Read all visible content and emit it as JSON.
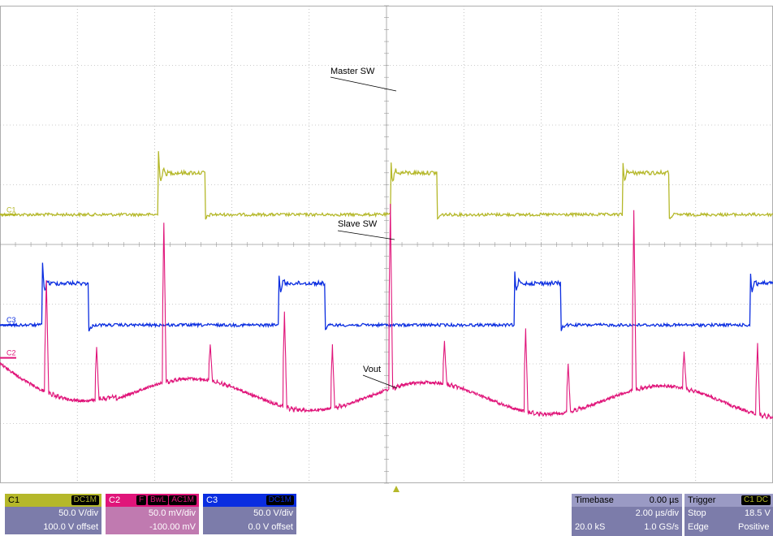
{
  "chart_data": {
    "type": "line",
    "title": "",
    "xlabel": "",
    "ylabel": "",
    "grid": true,
    "x_divisions": 10,
    "y_divisions": 8,
    "series": [
      {
        "name": "C1",
        "color": "#b5b82a",
        "low_div": 3.5,
        "high_div": 2.8,
        "transitions_div": [
          2.05,
          2.65,
          5.05,
          5.65,
          8.05,
          8.65
        ]
      },
      {
        "name": "C3",
        "color": "#0a2de0",
        "low_div": 5.35,
        "high_div": 4.65,
        "transitions_div": [
          0.55,
          1.15,
          3.6,
          4.2,
          6.65,
          7.25,
          9.7
        ]
      },
      {
        "name": "C2",
        "color": "#e0157a"
      }
    ],
    "annotations": [
      {
        "text": "Master SW",
        "target": "C1"
      },
      {
        "text": "Slave SW",
        "target": "C3"
      },
      {
        "text": "Vout",
        "target": "C2"
      }
    ],
    "channel_markers": [
      "C1",
      "C3",
      "C2"
    ]
  },
  "panels": {
    "c1": {
      "name": "C1",
      "coupling": "DC1M",
      "vdiv": "50.0 V/div",
      "offset": "100.0 V offset"
    },
    "c2": {
      "name": "C2",
      "flags": [
        "F",
        "BwL",
        "AC1M"
      ],
      "vdiv": "50.0 mV/div",
      "offset": "-100.00 mV"
    },
    "c3": {
      "name": "C3",
      "coupling": "DC1M",
      "vdiv": "50.0 V/div",
      "offset": "0.0 V offset"
    },
    "timebase": {
      "label": "Timebase",
      "delay": "0.00 µs",
      "tdiv": "2.00 µs/div",
      "samples": "20.0 kS",
      "rate": "1.0 GS/s"
    },
    "trigger": {
      "label": "Trigger",
      "badge": "C1 DC",
      "mode": "Stop",
      "level": "18.5 V",
      "type": "Edge",
      "slope": "Positive"
    }
  },
  "colors": {
    "grid": "#9a9a9a",
    "c1_panel": "#b5b82a",
    "c2_panel": "#e0157a",
    "c3_panel": "#0a2de0",
    "panel_body": "#7c7caa",
    "panel_body_c2": "#c07ab0"
  }
}
